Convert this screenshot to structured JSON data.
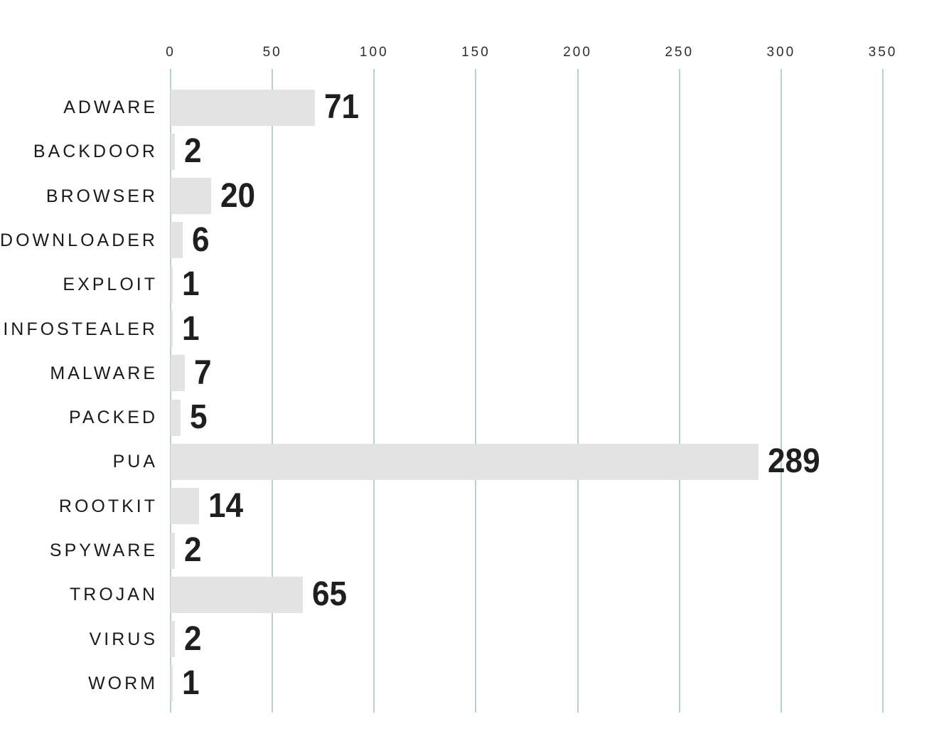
{
  "chart_data": {
    "type": "bar",
    "orientation": "horizontal",
    "title": "",
    "categories": [
      "ADWARE",
      "BACKDOOR",
      "BROWSER",
      "DOWNLOADER",
      "EXPLOIT",
      "INFOSTEALER",
      "MALWARE",
      "PACKED",
      "PUA",
      "ROOTKIT",
      "SPYWARE",
      "TROJAN",
      "VIRUS",
      "WORM"
    ],
    "values": [
      71,
      2,
      20,
      6,
      1,
      1,
      7,
      5,
      289,
      14,
      2,
      65,
      2,
      1
    ],
    "x_axis": {
      "position": "top",
      "ticks": [
        0,
        50,
        100,
        150,
        200,
        250,
        300,
        350
      ]
    },
    "xlim": [
      0,
      350
    ],
    "grid": "vertical-lines",
    "legend": "none",
    "colors": {
      "background": "#ffffff",
      "bar": "#e3e3e3",
      "grid": "#b7d0d3",
      "tick_label": "#2e2e2e",
      "category_label": "#1a1a1a",
      "value_label": "#1f1f1f"
    }
  }
}
